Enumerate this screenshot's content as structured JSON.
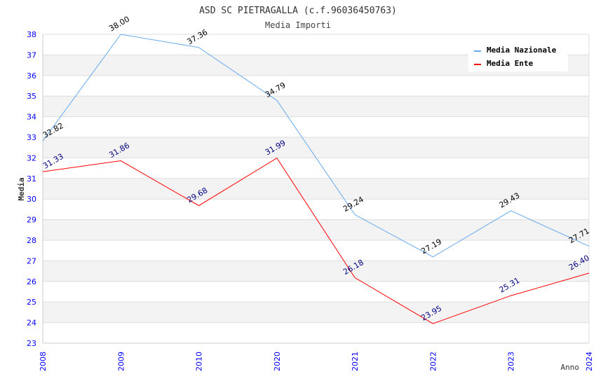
{
  "chart_data": {
    "type": "line",
    "title": "ASD SC PIETRAGALLA (c.f.96036450763)",
    "subtitle": "Media Importi",
    "xlabel": "Anno",
    "ylabel": "Media",
    "ylim": [
      23,
      38
    ],
    "yticks": [
      "23",
      "24",
      "25",
      "26",
      "27",
      "28",
      "29",
      "30",
      "31",
      "32",
      "33",
      "34",
      "35",
      "36",
      "37",
      "38"
    ],
    "categories": [
      "2008",
      "2009",
      "2010",
      "2020",
      "2021",
      "2022",
      "2023",
      "2024"
    ],
    "series": [
      {
        "name": "Media Nazionale",
        "color": "#66aaee",
        "label_color": "#000000",
        "values": [
          32.82,
          38.0,
          37.36,
          34.79,
          29.24,
          27.19,
          29.43,
          27.71
        ],
        "labels": [
          "32.82",
          "38.00",
          "37.36",
          "34.79",
          "29.24",
          "27.19",
          "29.43",
          "27.71"
        ]
      },
      {
        "name": "Media Ente",
        "color": "#ff0000",
        "label_color": "#000080",
        "values": [
          31.33,
          31.86,
          29.68,
          31.99,
          26.18,
          23.95,
          25.31,
          26.4
        ],
        "labels": [
          "31.33",
          "31.86",
          "29.68",
          "31.99",
          "26.18",
          "23.95",
          "25.31",
          "26.40"
        ]
      }
    ],
    "grid": true,
    "legend": "top-right"
  }
}
